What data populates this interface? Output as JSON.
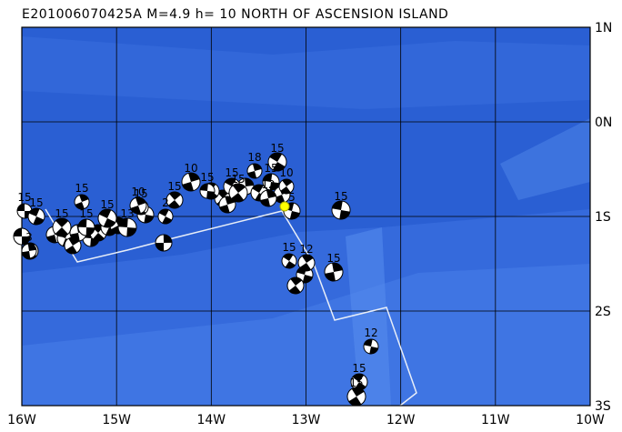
{
  "header": {
    "title": "E201006070425A  M=4.9  h= 10 NORTH OF ASCENSION ISLAND"
  },
  "axes": {
    "lon_labels": [
      "16W",
      "15W",
      "14W",
      "13W",
      "12W",
      "11W",
      "10W"
    ],
    "lat_labels": [
      "1N",
      "0N",
      "1S",
      "2S",
      "3S"
    ]
  },
  "events": {
    "depth_labels": [
      "15",
      "15",
      "15",
      "15",
      "15",
      "15",
      "15",
      "10",
      "13",
      "2",
      "15",
      "10",
      "15",
      "15",
      "15",
      "18",
      "15",
      "15",
      "10",
      "12",
      "15",
      "15",
      "12",
      "15",
      "12",
      "15",
      "15",
      "3",
      "5"
    ]
  }
}
